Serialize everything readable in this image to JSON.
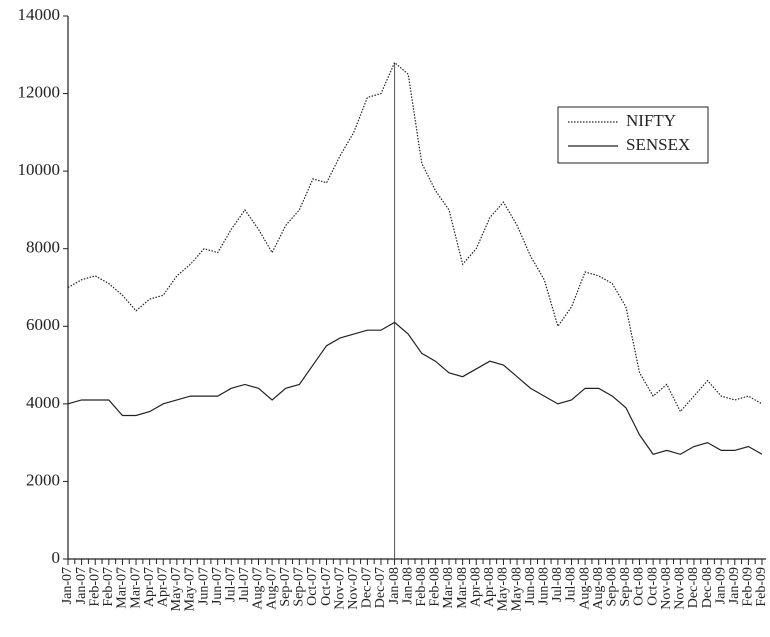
{
  "chart_data": {
    "type": "line",
    "categories": [
      "Jan-07",
      "Jan-07",
      "Feb-07",
      "Feb-07",
      "Mar-07",
      "Mar-07",
      "Apr-07",
      "Apr-07",
      "May-07",
      "May-07",
      "Jun-07",
      "Jun-07",
      "Jul-07",
      "Jul-07",
      "Aug-07",
      "Aug-07",
      "Sep-07",
      "Sep-07",
      "Oct-07",
      "Oct-07",
      "Nov-07",
      "Nov-07",
      "Dec-07",
      "Dec-07",
      "Jan-08",
      "Jan-08",
      "Feb-08",
      "Feb-08",
      "Mar-08",
      "Mar-08",
      "Apr-08",
      "Apr-08",
      "May-08",
      "May-08",
      "Jun-08",
      "Jun-08",
      "Jul-08",
      "Jul-08",
      "Aug-08",
      "Aug-08",
      "Sep-08",
      "Sep-08",
      "Oct-08",
      "Oct-08",
      "Nov-08",
      "Nov-08",
      "Dec-08",
      "Dec-08",
      "Jan-09",
      "Jan-09",
      "Feb-09",
      "Feb-09"
    ],
    "series": [
      {
        "name": "NIFTY",
        "color": "#222222",
        "dash": "dotted",
        "values": [
          7000,
          7200,
          7300,
          7100,
          6800,
          6400,
          6700,
          6800,
          7300,
          7600,
          8000,
          7900,
          8500,
          9000,
          8500,
          7900,
          8600,
          9000,
          9800,
          9700,
          10400,
          11000,
          11900,
          12000,
          12800,
          12500,
          10200,
          9500,
          9000,
          7600,
          8000,
          8800,
          9200,
          8600,
          7800,
          7200,
          6000,
          6500,
          7400,
          7300,
          7100,
          6500,
          4800,
          4200,
          4500,
          3800,
          4200,
          4600,
          4200,
          4100,
          4200,
          4000
        ]
      },
      {
        "name": "SENSEX",
        "color": "#222222",
        "dash": "solid",
        "values": [
          4000,
          4100,
          4100,
          4100,
          3700,
          3700,
          3800,
          4000,
          4100,
          4200,
          4200,
          4200,
          4400,
          4500,
          4400,
          4100,
          4400,
          4500,
          5000,
          5500,
          5700,
          5800,
          5900,
          5900,
          6100,
          5800,
          5300,
          5100,
          4800,
          4700,
          4900,
          5100,
          5000,
          4700,
          4400,
          4200,
          4000,
          4100,
          4400,
          4400,
          4200,
          3900,
          3200,
          2700,
          2800,
          2700,
          2900,
          3000,
          2800,
          2800,
          2900,
          2700
        ]
      }
    ],
    "ylim": [
      0,
      14000
    ],
    "yticks": [
      0,
      2000,
      4000,
      6000,
      8000,
      10000,
      12000,
      14000
    ],
    "grid": false,
    "legend": "upper right"
  }
}
